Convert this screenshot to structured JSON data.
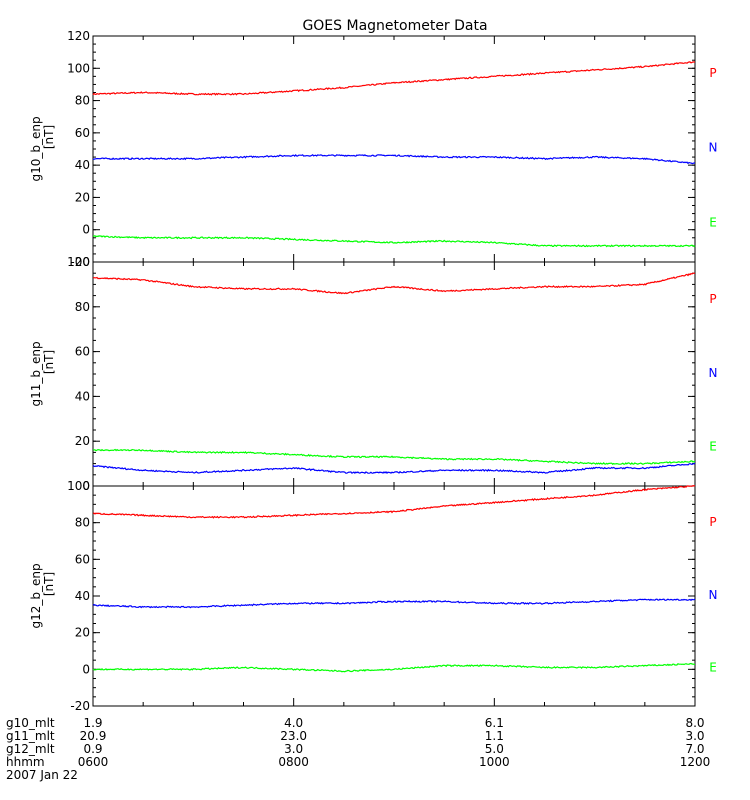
{
  "title": "GOES Magnetometer Data",
  "chart_data": [
    {
      "type": "line",
      "panel": "g10",
      "ylabel": "g10_b_enp",
      "yunit": "[nT]",
      "ylim": [
        -20,
        120
      ],
      "yticks": [
        -20,
        0,
        20,
        40,
        60,
        80,
        100,
        120
      ],
      "xlim": [
        "0600",
        "1200"
      ],
      "x": [
        "0600",
        "0630",
        "0700",
        "0730",
        "0800",
        "0830",
        "0900",
        "0930",
        "1000",
        "1030",
        "1100",
        "1130",
        "1200"
      ],
      "series": [
        {
          "name": "P",
          "color": "#ff0000",
          "values": [
            84,
            85,
            84,
            84,
            86,
            88,
            91,
            93,
            95,
            97,
            99,
            101,
            104
          ]
        },
        {
          "name": "N",
          "color": "#0000ff",
          "values": [
            44,
            44,
            44,
            45,
            46,
            46,
            46,
            45,
            45,
            44,
            45,
            44,
            41
          ]
        },
        {
          "name": "E",
          "color": "#00ff00",
          "values": [
            -4,
            -5,
            -5,
            -5,
            -6,
            -7,
            -8,
            -7,
            -8,
            -10,
            -10,
            -10,
            -10
          ]
        }
      ]
    },
    {
      "type": "line",
      "panel": "g11",
      "ylabel": "g11_b_enp",
      "yunit": "[nT]",
      "ylim": [
        0,
        100
      ],
      "yticks": [
        0,
        20,
        40,
        60,
        80,
        100
      ],
      "xlim": [
        "0600",
        "1200"
      ],
      "x": [
        "0600",
        "0630",
        "0700",
        "0730",
        "0800",
        "0830",
        "0900",
        "0930",
        "1000",
        "1030",
        "1100",
        "1130",
        "1200"
      ],
      "series": [
        {
          "name": "P",
          "color": "#ff0000",
          "values": [
            93,
            92,
            89,
            88,
            88,
            86,
            89,
            87,
            88,
            89,
            89,
            90,
            95
          ]
        },
        {
          "name": "N",
          "color": "#0000ff",
          "values": [
            9,
            7,
            6,
            7,
            8,
            6,
            6,
            7,
            7,
            6,
            8,
            8,
            10
          ]
        },
        {
          "name": "E",
          "color": "#00ff00",
          "values": [
            16,
            16,
            15,
            15,
            14,
            13,
            13,
            12,
            12,
            11,
            10,
            10,
            11
          ]
        }
      ]
    },
    {
      "type": "line",
      "panel": "g12",
      "ylabel": "g12_b_enp",
      "yunit": "[nT]",
      "ylim": [
        -20,
        100
      ],
      "yticks": [
        -20,
        0,
        20,
        40,
        60,
        80,
        100
      ],
      "xlim": [
        "0600",
        "1200"
      ],
      "x": [
        "0600",
        "0630",
        "0700",
        "0730",
        "0800",
        "0830",
        "0900",
        "0930",
        "1000",
        "1030",
        "1100",
        "1130",
        "1200"
      ],
      "series": [
        {
          "name": "P",
          "color": "#ff0000",
          "values": [
            85,
            84,
            83,
            83,
            84,
            85,
            86,
            89,
            91,
            93,
            95,
            98,
            100
          ]
        },
        {
          "name": "N",
          "color": "#0000ff",
          "values": [
            35,
            34,
            34,
            35,
            36,
            36,
            37,
            37,
            36,
            36,
            37,
            38,
            38
          ]
        },
        {
          "name": "E",
          "color": "#00ff00",
          "values": [
            0,
            0,
            0,
            1,
            0,
            -1,
            0,
            2,
            2,
            1,
            1,
            2,
            3
          ]
        }
      ]
    }
  ],
  "footer": {
    "rows": [
      {
        "label": "g10_mlt",
        "values": [
          "1.9",
          "4.0",
          "6.1",
          "8.0"
        ]
      },
      {
        "label": "g11_mlt",
        "values": [
          "20.9",
          "23.0",
          "1.1",
          "3.0"
        ]
      },
      {
        "label": "g12_mlt",
        "values": [
          "0.9",
          "3.0",
          "5.0",
          "7.0"
        ]
      },
      {
        "label": "hhmm",
        "values": [
          "0600",
          "0800",
          "1000",
          "1200"
        ]
      }
    ],
    "date": "2007 Jan 22"
  }
}
